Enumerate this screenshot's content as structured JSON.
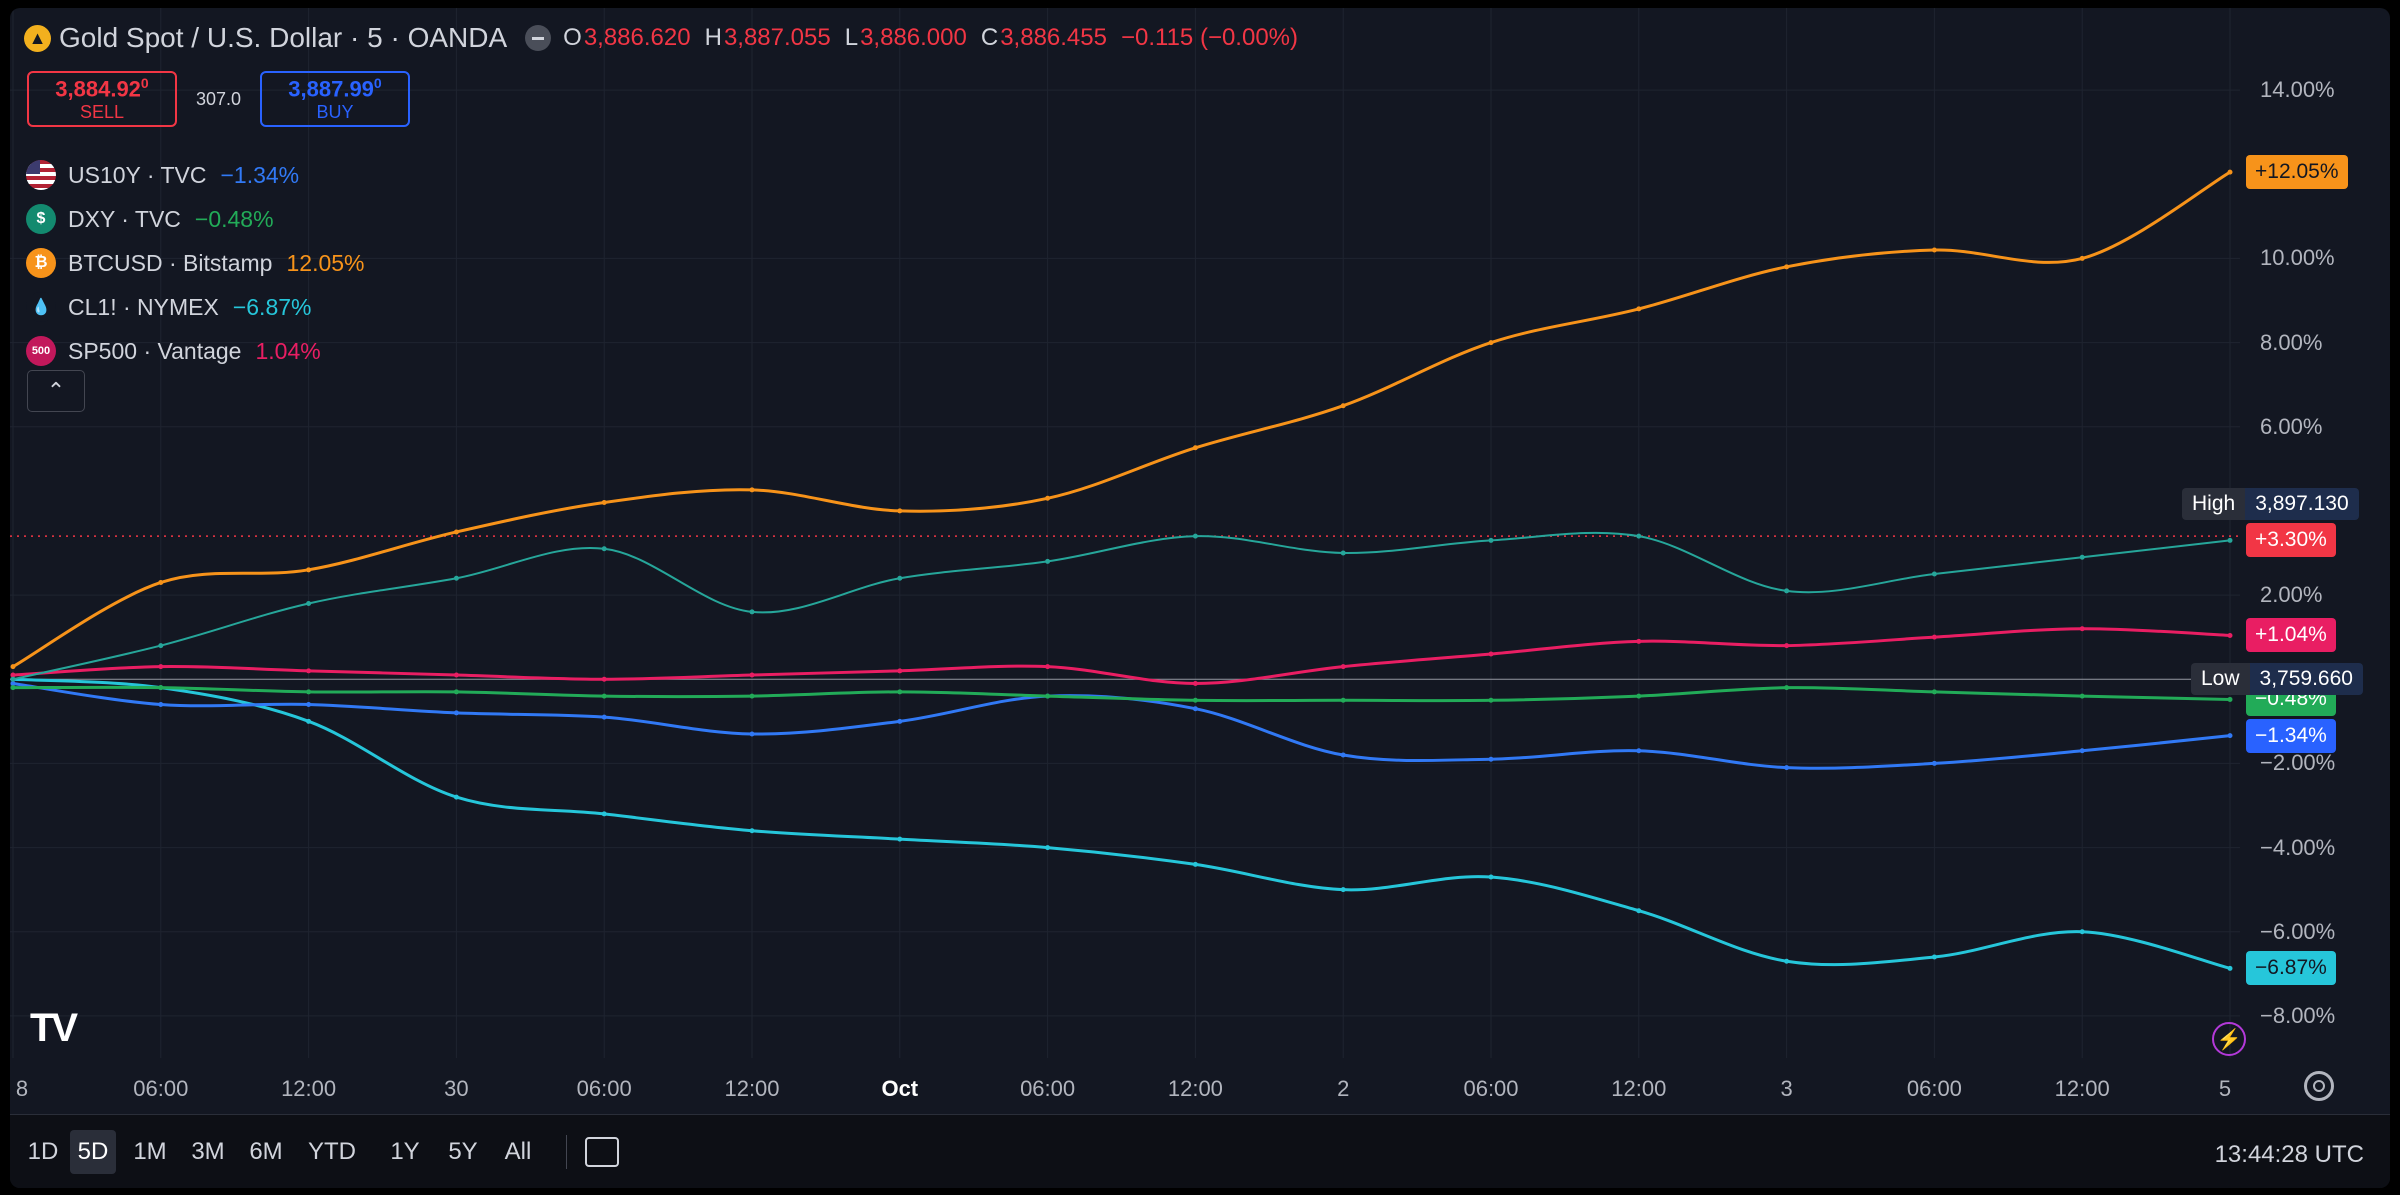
{
  "header": {
    "logo_glyph": "▲",
    "title": "Gold Spot / U.S. Dollar · 5 · OANDA",
    "ohlc": [
      {
        "label": "O",
        "value": "3,886.620"
      },
      {
        "label": "H",
        "value": "3,887.055"
      },
      {
        "label": "L",
        "value": "3,886.000"
      },
      {
        "label": "C",
        "value": "3,886.455"
      }
    ],
    "change": "−0.115 (−0.00%)"
  },
  "trade": {
    "sell_price": "3,884.92",
    "sell_sup": "0",
    "sell_label": "SELL",
    "spread": "307.0",
    "buy_price": "3,887.99",
    "buy_sup": "0",
    "buy_label": "BUY"
  },
  "legend": [
    {
      "symbol": "US10Y · TVC",
      "value": "−1.34%",
      "color": "#3179f5",
      "icon": "us-flag-icon",
      "glyph": "",
      "bg": "#3c3b6e"
    },
    {
      "symbol": "DXY · TVC",
      "value": "−0.48%",
      "color": "#22ab58",
      "icon": "dollar-icon",
      "glyph": "$",
      "bg": "#138a6f"
    },
    {
      "symbol": "BTCUSD · Bitstamp",
      "value": "12.05%",
      "color": "#f7931a",
      "icon": "bitcoin-icon",
      "glyph": "₿",
      "bg": "#f7931a"
    },
    {
      "symbol": "CL1! · NYMEX",
      "value": "−6.87%",
      "color": "#26c6da",
      "icon": "oil-drop-icon",
      "glyph": "💧",
      "bg": "#131722"
    },
    {
      "symbol": "SP500 · Vantage",
      "value": "1.04%",
      "color": "#e91e63",
      "icon": "sp500-icon",
      "glyph": "500",
      "bg": "#c2185b"
    }
  ],
  "collapse_glyph": "⌃",
  "price_axis": {
    "labels": [
      "14.00%",
      "10.00%",
      "8.00%",
      "6.00%",
      "2.00%",
      "−2.00%",
      "−4.00%",
      "−6.00%",
      "−8.00%"
    ],
    "values": [
      14,
      10,
      8,
      6,
      2,
      -2,
      -4,
      -6,
      -8
    ]
  },
  "time_axis": [
    {
      "label": "8",
      "bold": false
    },
    {
      "label": "06:00",
      "bold": false
    },
    {
      "label": "12:00",
      "bold": false
    },
    {
      "label": "30",
      "bold": false
    },
    {
      "label": "06:00",
      "bold": false
    },
    {
      "label": "12:00",
      "bold": false
    },
    {
      "label": "Oct",
      "bold": true
    },
    {
      "label": "06:00",
      "bold": false
    },
    {
      "label": "12:00",
      "bold": false
    },
    {
      "label": "2",
      "bold": false
    },
    {
      "label": "06:00",
      "bold": false
    },
    {
      "label": "12:00",
      "bold": false
    },
    {
      "label": "3",
      "bold": false
    },
    {
      "label": "06:00",
      "bold": false
    },
    {
      "label": "12:00",
      "bold": false
    },
    {
      "label": "5",
      "bold": false
    }
  ],
  "high_low": {
    "high_label": "High",
    "high_value": "3,897.130",
    "low_label": "Low",
    "low_value": "3,759.660"
  },
  "tags": [
    {
      "text": "+12.05%",
      "value": 12.05,
      "color": "#f7931a",
      "text_color": "#131722"
    },
    {
      "text": "+3.30%",
      "value": 3.3,
      "color": "#f23645",
      "text_color": "#ffffff"
    },
    {
      "text": "+1.04%",
      "value": 1.04,
      "color": "#e91e63",
      "text_color": "#ffffff"
    },
    {
      "text": "−0.48%",
      "value": -0.48,
      "color": "#22ab58",
      "text_color": "#ffffff"
    },
    {
      "text": "−1.34%",
      "value": -1.34,
      "color": "#2962ff",
      "text_color": "#ffffff"
    },
    {
      "text": "−6.87%",
      "value": -6.87,
      "color": "#26c6da",
      "text_color": "#131722"
    }
  ],
  "timeframes": [
    "1D",
    "5D",
    "1M",
    "3M",
    "6M",
    "YTD",
    "1Y",
    "5Y",
    "All"
  ],
  "active_timeframe": "5D",
  "clock": "13:44:28 UTC",
  "tv_logo": "TV",
  "flash_glyph": "⚡",
  "chart_data": {
    "type": "line",
    "x": [
      "8",
      "06:00",
      "12:00",
      "30",
      "06:00",
      "12:00",
      "Oct",
      "06:00",
      "12:00",
      "2",
      "06:00",
      "12:00",
      "3",
      "06:00",
      "12:00",
      "5"
    ],
    "ylim": [
      -9,
      15
    ],
    "series": [
      {
        "name": "BTCUSD · Bitstamp",
        "color": "#f7931a",
        "values": [
          0.3,
          2.3,
          2.6,
          3.5,
          4.2,
          4.5,
          4.0,
          4.3,
          5.5,
          6.5,
          8.0,
          8.8,
          9.8,
          10.2,
          10.0,
          12.05
        ]
      },
      {
        "name": "Gold Spot / U.S. Dollar",
        "color": "#26a69a",
        "values": [
          0.0,
          0.8,
          1.8,
          2.4,
          3.1,
          1.6,
          2.4,
          2.8,
          3.4,
          3.0,
          3.3,
          3.4,
          2.1,
          2.5,
          2.9,
          3.3
        ]
      },
      {
        "name": "SP500 · Vantage",
        "color": "#e91e63",
        "values": [
          0.1,
          0.3,
          0.2,
          0.1,
          0.0,
          0.1,
          0.2,
          0.3,
          -0.1,
          0.3,
          0.6,
          0.9,
          0.8,
          1.0,
          1.2,
          1.04
        ]
      },
      {
        "name": "DXY · TVC",
        "color": "#22ab58",
        "values": [
          -0.2,
          -0.2,
          -0.3,
          -0.3,
          -0.4,
          -0.4,
          -0.3,
          -0.4,
          -0.5,
          -0.5,
          -0.5,
          -0.4,
          -0.2,
          -0.3,
          -0.4,
          -0.48
        ]
      },
      {
        "name": "US10Y · TVC",
        "color": "#3179f5",
        "values": [
          -0.1,
          -0.6,
          -0.6,
          -0.8,
          -0.9,
          -1.3,
          -1.0,
          -0.4,
          -0.7,
          -1.8,
          -1.9,
          -1.7,
          -2.1,
          -2.0,
          -1.7,
          -1.34
        ]
      },
      {
        "name": "CL1! · NYMEX",
        "color": "#26c6da",
        "values": [
          0.0,
          -0.2,
          -1.0,
          -2.8,
          -3.2,
          -3.6,
          -3.8,
          -4.0,
          -4.4,
          -5.0,
          -4.7,
          -5.5,
          -6.7,
          -6.6,
          -6.0,
          -6.87
        ]
      }
    ]
  }
}
